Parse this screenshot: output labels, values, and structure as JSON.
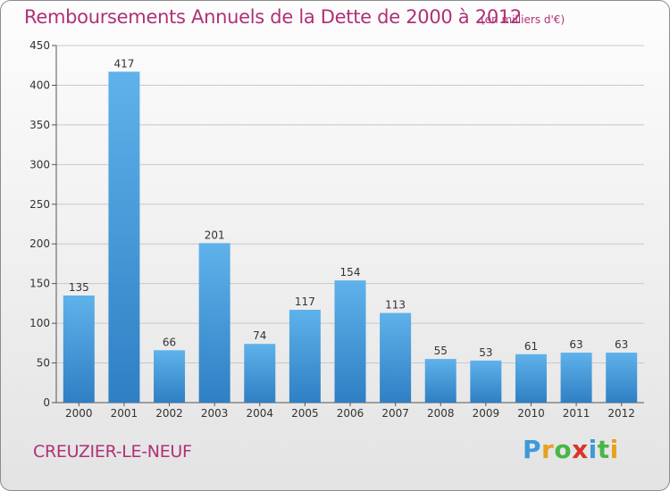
{
  "chart_data": {
    "type": "bar",
    "title": "Remboursements Annuels de la Dette de 2000 à 2012",
    "subtitle": "(en milliers d'€)",
    "categories": [
      "2000",
      "2001",
      "2002",
      "2003",
      "2004",
      "2005",
      "2006",
      "2007",
      "2008",
      "2009",
      "2010",
      "2011",
      "2012"
    ],
    "values": [
      135,
      417,
      66,
      201,
      74,
      117,
      154,
      113,
      55,
      53,
      61,
      63,
      63
    ],
    "ylim": [
      0,
      450
    ],
    "yticks": [
      0,
      50,
      100,
      150,
      200,
      250,
      300,
      350,
      400,
      450
    ],
    "grid": true,
    "bar_color": "#3a8fd6"
  },
  "footer": {
    "place": "CREUZIER-LE-NEUF"
  },
  "logo": {
    "letters": [
      "P",
      "r",
      "o",
      "x",
      "i",
      "t",
      "i"
    ],
    "colors": [
      "#3e9ad8",
      "#e8a020",
      "#48b648",
      "#d9342b",
      "#3e9ad8",
      "#48b648",
      "#e8a020"
    ]
  }
}
